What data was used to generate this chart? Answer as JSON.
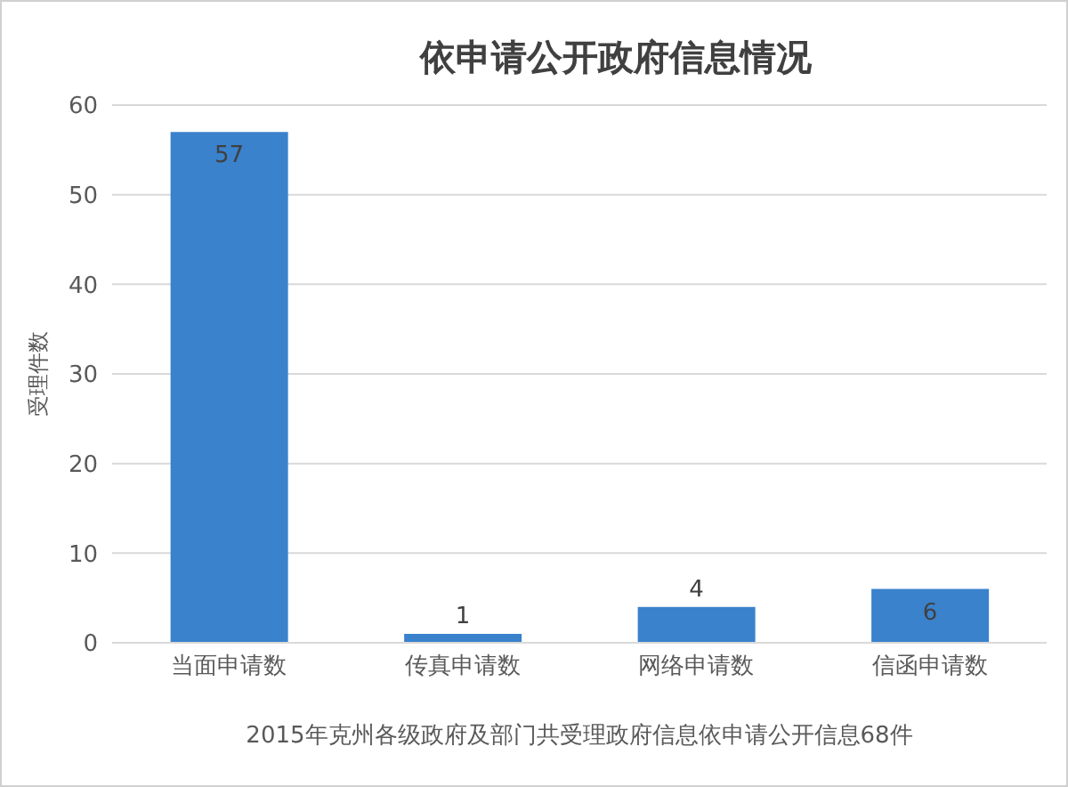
{
  "chart_data": {
    "type": "bar",
    "title": "依申请公开政府信息情况",
    "xlabel": "2015年克州各级政府及部门共受理政府信息依申请公开信息68件",
    "ylabel": "受理件数",
    "categories": [
      "当面申请数",
      "传真申请数",
      "网络申请数",
      "信函申请数"
    ],
    "values": [
      57,
      1,
      4,
      6
    ],
    "color": "#3a82cc",
    "ylim": [
      0,
      60
    ],
    "yticks": [
      0,
      10,
      20,
      30,
      40,
      50,
      60
    ],
    "grid": "y",
    "data_labels": true
  }
}
